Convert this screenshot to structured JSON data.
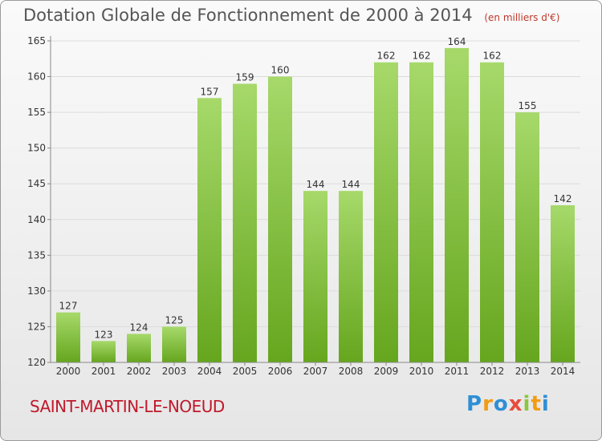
{
  "header": {
    "title": "Dotation Globale de Fonctionnement de 2000 à 2014",
    "unit": "(en milliers d'€)"
  },
  "commune": "SAINT-MARTIN-LE-NOEUD",
  "logo": "Proxiti",
  "colors": {
    "bar_light": "#a6d96a",
    "bar_dark": "#66a61e",
    "commune_text": "#c0182b"
  },
  "chart_data": {
    "type": "bar",
    "title": "Dotation Globale de Fonctionnement de 2000 à 2014",
    "subtitle": "(en milliers d'€)",
    "categories": [
      "2000",
      "2001",
      "2002",
      "2003",
      "2004",
      "2005",
      "2006",
      "2007",
      "2008",
      "2009",
      "2010",
      "2011",
      "2012",
      "2013",
      "2014"
    ],
    "values": [
      127,
      123,
      124,
      125,
      157,
      159,
      160,
      144,
      144,
      162,
      162,
      164,
      162,
      155,
      142
    ],
    "ylim": [
      120,
      165
    ],
    "yticks": [
      120,
      125,
      130,
      135,
      140,
      145,
      150,
      155,
      160,
      165
    ],
    "grid": true,
    "xlabel": "",
    "ylabel": ""
  }
}
